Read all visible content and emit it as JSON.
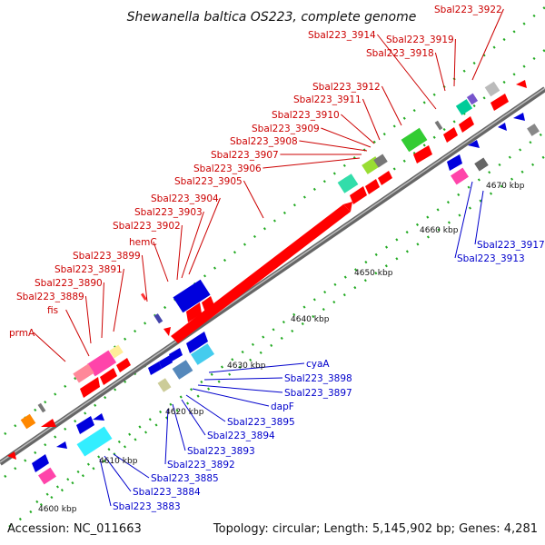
{
  "title": "Shewanella baltica OS223, complete genome",
  "footer": {
    "accession": "Accession: NC_011663",
    "summary": "Topology: circular; Length: 5,145,902 bp; Genes: 4,281"
  },
  "scale_ticks": [
    "4600 kbp",
    "4610 kbp",
    "4620 kbp",
    "4630 kbp",
    "4640 kbp",
    "4650 kbp",
    "4660 kbp",
    "4670 kbp"
  ],
  "top_labels": [
    "prmA",
    "fis",
    "Sbal223_3889",
    "Sbal223_3890",
    "Sbal223_3891",
    "Sbal223_3899",
    "hemC",
    "Sbal223_3902",
    "Sbal223_3903",
    "Sbal223_3904",
    "Sbal223_3905",
    "Sbal223_3906",
    "Sbal223_3907",
    "Sbal223_3908",
    "Sbal223_3909",
    "Sbal223_3910",
    "Sbal223_3911",
    "Sbal223_3912",
    "Sbal223_3914",
    "Sbal223_3918",
    "Sbal223_3919",
    "Sbal223_3922"
  ],
  "bottom_labels": [
    "cyaA",
    "Sbal223_3898",
    "Sbal223_3897",
    "dapF",
    "Sbal223_3895",
    "Sbal223_3894",
    "Sbal223_3893",
    "Sbal223_3892",
    "Sbal223_3885",
    "Sbal223_3884",
    "Sbal223_3883",
    "Sbal223_3917",
    "Sbal223_3913"
  ],
  "colors": {
    "forward": "#ff0000",
    "reverse": "#0000dd",
    "top_label": "#cc0000",
    "bottom_label": "#0000cc",
    "backbone": "#888888",
    "tick_dots": "#22aa22"
  }
}
